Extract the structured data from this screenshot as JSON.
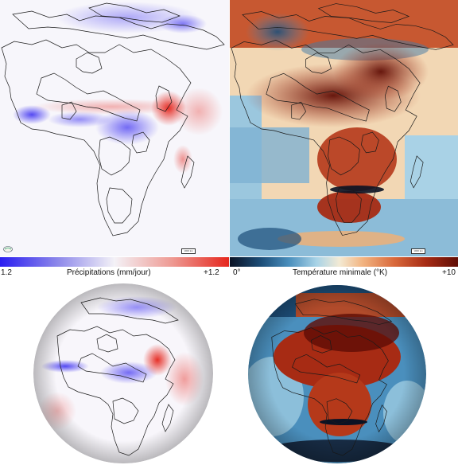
{
  "panels": {
    "precip": {
      "colorbar_min": "1.2",
      "colorbar_title": "Précipitations (mm/jour)",
      "colorbar_max": "+1.2",
      "colors": [
        "#2a1df0",
        "#f4f2f7",
        "#e5261d"
      ]
    },
    "temp": {
      "colorbar_min": "0°",
      "colorbar_title": "Température minimale (°K)",
      "colorbar_max": "+10",
      "colors": [
        "#0a1224",
        "#4a8fbd",
        "#f3ead4",
        "#d9693b",
        "#5f0d05"
      ]
    }
  },
  "scale_label": "1000 km",
  "icons": [
    "globe-logo-icon"
  ]
}
